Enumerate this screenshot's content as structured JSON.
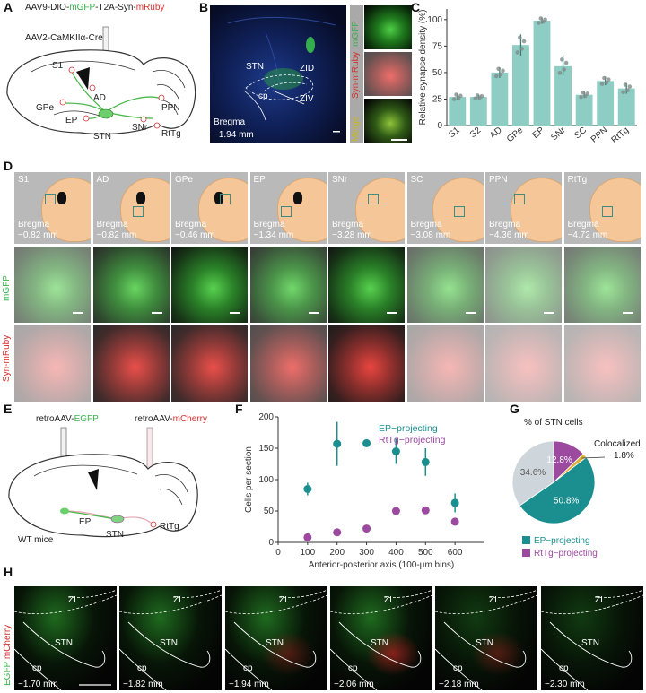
{
  "panels": {
    "A": {
      "letter": "A",
      "virus1_pre": "AAV9-DIO-",
      "virus1_gfp": "mGFP",
      "virus1_mid": "-T2A-Syn-",
      "virus1_ruby": "mRuby",
      "virus2": "AAV2-CaMKIIα-Cre",
      "regions": [
        "S1",
        "AD",
        "GPe",
        "EP",
        "PPN",
        "SNr",
        "RtTg",
        "STN"
      ]
    },
    "B": {
      "letter": "B",
      "labels": [
        "STN",
        "ZID",
        "cp",
        "ZIV"
      ],
      "bregma": "Bregma",
      "bregma_val": "−1.94 mm",
      "side_labels": [
        "mGFP",
        "Syn-mRuby",
        "Merge"
      ]
    },
    "C": {
      "letter": "C",
      "ylabel": "Relative synapse density (%)"
    },
    "D": {
      "letter": "D",
      "regions": [
        "S1",
        "AD",
        "GPe",
        "EP",
        "SNr",
        "SC",
        "PPN",
        "RtTg"
      ],
      "bregma_word": "Bregma",
      "bregmas": [
        "−0.82 mm",
        "−0.82 mm",
        "−0.46 mm",
        "−1.34 mm",
        "−3.28 mm",
        "−3.08 mm",
        "−4.36 mm",
        "−4.72 mm"
      ],
      "row_labels": [
        "mGFP",
        "Syn-mRuby"
      ]
    },
    "E": {
      "letter": "E",
      "virus1_pre": "retroAAV-",
      "virus1_fp": "EGFP",
      "virus2_pre": "retroAAV-",
      "virus2_fp": "mCherry",
      "labels": [
        "EP",
        "RtTg",
        "STN",
        "WT mice"
      ]
    },
    "F": {
      "letter": "F",
      "ylabel": "Cells per section",
      "xlabel": "Anterior-posterior axis (100-μm bins)",
      "legend": [
        "EP−projecting",
        "RtTg−projecting"
      ]
    },
    "G": {
      "letter": "G",
      "title": "% of STN cells",
      "coloc_label": "Colocalized",
      "slice_labels": [
        "12.8%",
        "1.8%",
        "34.6%",
        "50.8%"
      ],
      "legend": [
        "EP−projecting",
        "RtTg−projecting"
      ]
    },
    "H": {
      "letter": "H",
      "side_labels": [
        "EGFP",
        "mCherry"
      ],
      "region_labels": [
        "ZI",
        "STN",
        "cp"
      ],
      "bregmas": [
        "−1.70 mm",
        "−1.82 mm",
        "−1.94 mm",
        "−2.06 mm",
        "−2.18 mm",
        "−2.30 mm"
      ]
    }
  },
  "chart_data": [
    {
      "type": "bar",
      "panel": "C",
      "categories": [
        "S1",
        "S2",
        "AD",
        "GPe",
        "EP",
        "SNr",
        "SC",
        "PPN",
        "RtTg"
      ],
      "values": [
        27,
        27,
        50,
        76,
        99,
        56,
        29,
        42,
        35
      ],
      "errors": [
        3,
        2,
        5,
        10,
        3,
        9,
        3,
        4,
        5
      ],
      "ylabel": "Relative synapse density (%)",
      "ylim": [
        0,
        110
      ],
      "yticks": [
        0,
        25,
        50,
        75,
        100
      ],
      "colors": {
        "bar": "#8ecdc3",
        "points": "#7f8c8a"
      }
    },
    {
      "type": "scatter",
      "panel": "F",
      "x": [
        100,
        200,
        300,
        400,
        500,
        600
      ],
      "series": [
        {
          "name": "EP−projecting",
          "values": [
            85,
            157,
            158,
            145,
            128,
            63
          ],
          "errors": [
            10,
            35,
            5,
            20,
            22,
            15
          ],
          "color": "#1b8f8f"
        },
        {
          "name": "RtTg−projecting",
          "values": [
            8,
            16,
            22,
            50,
            51,
            33
          ],
          "errors": [
            3,
            4,
            4,
            6,
            5,
            5
          ],
          "color": "#9b4aa0"
        }
      ],
      "xlabel": "Anterior-posterior axis (100-μm bins)",
      "ylabel": "Cells per section",
      "xlim": [
        0,
        700
      ],
      "ylim": [
        0,
        200
      ],
      "xticks": [
        0,
        100,
        200,
        300,
        400,
        500,
        600
      ],
      "yticks": [
        0,
        50,
        100,
        150,
        200
      ]
    },
    {
      "type": "pie",
      "panel": "G",
      "title": "% of STN cells",
      "slices": [
        {
          "label": "RtTg−projecting",
          "value": 12.8,
          "color": "#9b4aa0"
        },
        {
          "label": "Colocalized",
          "value": 1.8,
          "color": "#e0b23b"
        },
        {
          "label": "EP−projecting",
          "value": 50.8,
          "color": "#1b8f8f"
        },
        {
          "label": "",
          "value": 34.6,
          "color": "#cfd6db"
        }
      ]
    }
  ]
}
